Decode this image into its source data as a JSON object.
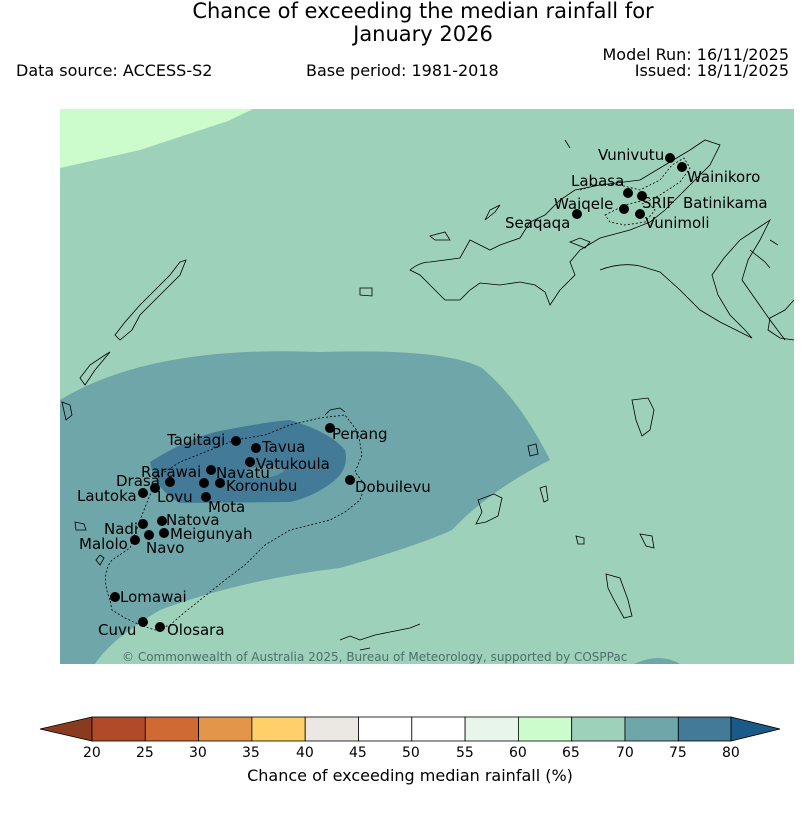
{
  "title_line1": "Chance of exceeding the median rainfall for",
  "title_line2": "January 2026",
  "data_source": "Data source: ACCESS-S2",
  "base_period": "Base period: 1981-2018",
  "model_run": "Model Run: 16/11/2025",
  "issued": "Issued: 18/11/2025",
  "copyright": "© Commonwealth of Australia 2025, Bureau of Meteorology, supported by COSPPac",
  "colors": {
    "c20": "#b04a28",
    "c25": "#cf6a34",
    "c30": "#e3964a",
    "c35": "#fdd06a",
    "c40": "#ebe7e2",
    "c45": "#ffffff",
    "c50": "#ffffff",
    "c55": "#e8f5ea",
    "c60": "#ccfccc",
    "c65": "#9ed1ba",
    "c70": "#6fa6a9",
    "c75": "#437a97",
    "c80": "#1a5a89",
    "c15": "#8a3a1e"
  },
  "colorbar": {
    "ticks": [
      "20",
      "25",
      "30",
      "35",
      "40",
      "45",
      "50",
      "55",
      "60",
      "65",
      "70",
      "75",
      "80"
    ],
    "label": "Chance of exceeding median rainfall (%)"
  },
  "stations": [
    {
      "name": "Vunivutu"
    },
    {
      "name": "Wainikoro"
    },
    {
      "name": "Labasa"
    },
    {
      "name": "SRIF"
    },
    {
      "name": "Batinikama"
    },
    {
      "name": "Waiqele"
    },
    {
      "name": "Vunimoli"
    },
    {
      "name": "Seaqaqa"
    },
    {
      "name": "Penang"
    },
    {
      "name": "Tagitagi"
    },
    {
      "name": "Tavua"
    },
    {
      "name": "Vatukoula"
    },
    {
      "name": "Rarawai"
    },
    {
      "name": "Navatu"
    },
    {
      "name": "Drasa"
    },
    {
      "name": "Koronubu"
    },
    {
      "name": "Lautoka"
    },
    {
      "name": "Lovu"
    },
    {
      "name": "Dobuilevu"
    },
    {
      "name": "Mota"
    },
    {
      "name": "Natova"
    },
    {
      "name": "Nadi"
    },
    {
      "name": "Meigunyah"
    },
    {
      "name": "Malolo"
    },
    {
      "name": "Navo"
    },
    {
      "name": "Lomawai"
    },
    {
      "name": "Cuvu"
    },
    {
      "name": "Olosara"
    }
  ]
}
